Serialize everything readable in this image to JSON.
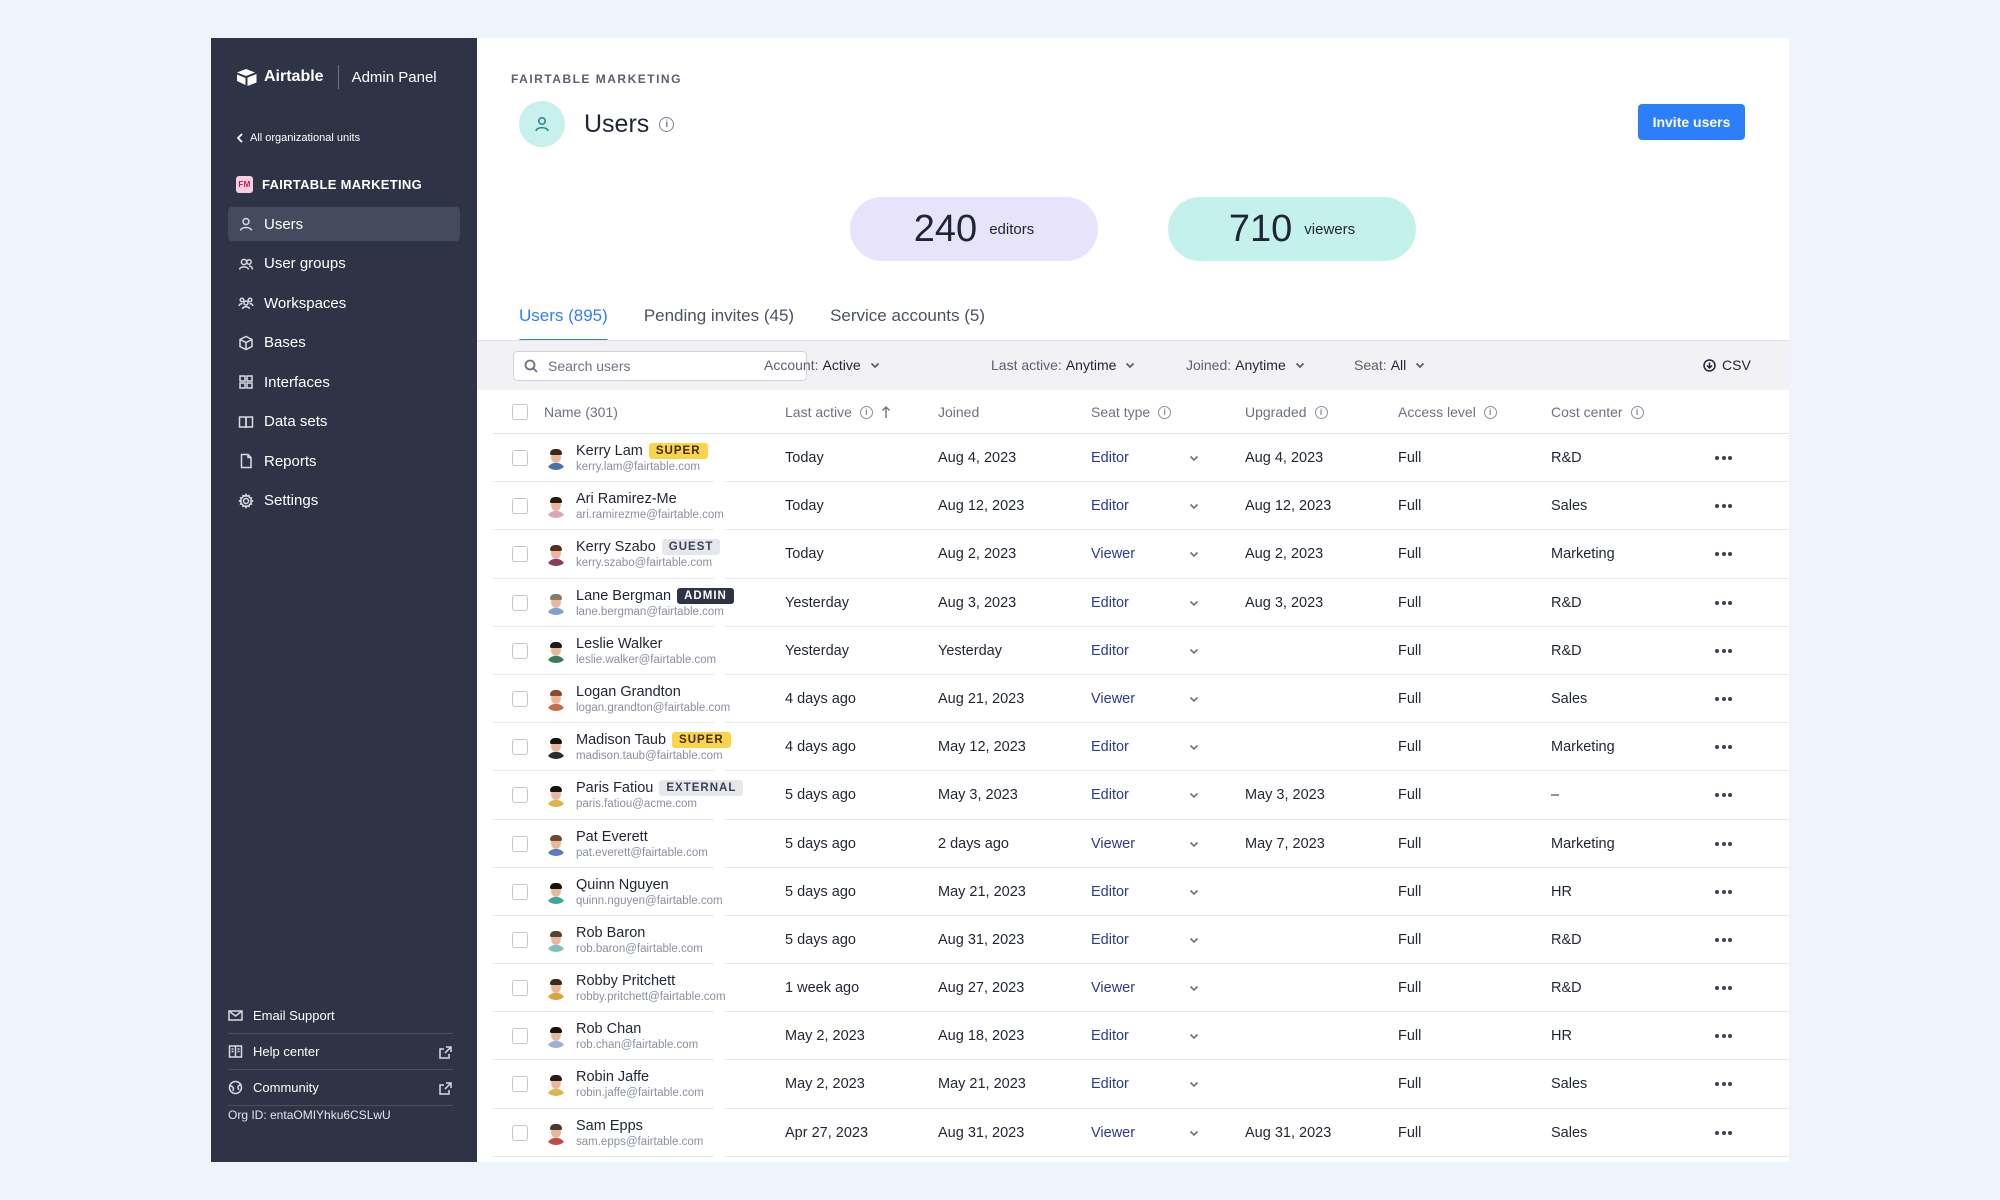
{
  "brand": {
    "name": "Airtable",
    "subtitle": "Admin Panel"
  },
  "sidebar": {
    "back_label": "All organizational units",
    "org_badge": "FM",
    "org_name": "FAIRTABLE MARKETING",
    "items": [
      {
        "label": "Users",
        "icon": "user-icon",
        "active": true
      },
      {
        "label": "User groups",
        "icon": "user-group-icon",
        "active": false
      },
      {
        "label": "Workspaces",
        "icon": "workspaces-icon",
        "active": false
      },
      {
        "label": "Bases",
        "icon": "cube-icon",
        "active": false
      },
      {
        "label": "Interfaces",
        "icon": "grid-icon",
        "active": false
      },
      {
        "label": "Data sets",
        "icon": "book-icon",
        "active": false
      },
      {
        "label": "Reports",
        "icon": "document-icon",
        "active": false
      },
      {
        "label": "Settings",
        "icon": "gear-icon",
        "active": false
      }
    ],
    "footer": {
      "email_support": "Email Support",
      "help_center": "Help center",
      "community": "Community",
      "org_id": "Org ID: entaOMIYhku6CSLwU"
    }
  },
  "header": {
    "eyebrow": "FAIRTABLE MARKETING",
    "title": "Users",
    "invite_label": "Invite users"
  },
  "stats": {
    "editors": {
      "value": "240",
      "label": "editors",
      "color": "#e7e3fb"
    },
    "viewers": {
      "value": "710",
      "label": "viewers",
      "color": "#c5f1ec"
    }
  },
  "tabs": [
    {
      "label": "Users (895)",
      "active": true
    },
    {
      "label": "Pending invites (45)",
      "active": false
    },
    {
      "label": "Service accounts (5)",
      "active": false
    }
  ],
  "filters": {
    "search_placeholder": "Search users",
    "account": {
      "label": "Account:",
      "value": "Active"
    },
    "last_active": {
      "label": "Last active:",
      "value": "Anytime"
    },
    "joined": {
      "label": "Joined:",
      "value": "Anytime"
    },
    "seat": {
      "label": "Seat:",
      "value": "All"
    },
    "csv_label": "CSV"
  },
  "table": {
    "columns": {
      "name": "Name (301)",
      "last_active": "Last active",
      "joined": "Joined",
      "seat_type": "Seat type",
      "upgraded": "Upgraded",
      "access_level": "Access level",
      "cost_center": "Cost center"
    },
    "rows": [
      {
        "name": "Kerry Lam",
        "badge": "SUPER",
        "badge_type": "super",
        "email": "kerry.lam@fairtable.com",
        "last_active": "Today",
        "joined": "Aug 4, 2023",
        "seat": "Editor",
        "upgraded": "Aug 4, 2023",
        "access": "Full",
        "cost": "R&D",
        "hair": "#3a2a1e",
        "shirt": "#4a6fb5"
      },
      {
        "name": "Ari Ramirez-Me",
        "badge": "",
        "badge_type": "",
        "email": "ari.ramirezme@fairtable.com",
        "last_active": "Today",
        "joined": "Aug 12, 2023",
        "seat": "Editor",
        "upgraded": "Aug 12, 2023",
        "access": "Full",
        "cost": "Sales",
        "hair": "#2a1a12",
        "shirt": "#d9a7b6"
      },
      {
        "name": "Kerry Szabo",
        "badge": "GUEST",
        "badge_type": "guest",
        "email": "kerry.szabo@fairtable.com",
        "last_active": "Today",
        "joined": "Aug 2, 2023",
        "seat": "Viewer",
        "upgraded": "Aug 2, 2023",
        "access": "Full",
        "cost": "Marketing",
        "hair": "#5a2e1e",
        "shirt": "#8b3a62"
      },
      {
        "name": "Lane Bergman",
        "badge": "ADMIN",
        "badge_type": "admin",
        "email": "lane.bergman@fairtable.com",
        "last_active": "Yesterday",
        "joined": "Aug 3, 2023",
        "seat": "Editor",
        "upgraded": "Aug 3, 2023",
        "access": "Full",
        "cost": "R&D",
        "hair": "#8a7a68",
        "shirt": "#7fa0d0"
      },
      {
        "name": "Leslie Walker",
        "badge": "",
        "badge_type": "",
        "email": "leslie.walker@fairtable.com",
        "last_active": "Yesterday",
        "joined": "Yesterday",
        "seat": "Editor",
        "upgraded": "",
        "access": "Full",
        "cost": "R&D",
        "hair": "#1e1a16",
        "shirt": "#3a7a5a"
      },
      {
        "name": "Logan Grandton",
        "badge": "",
        "badge_type": "",
        "email": "logan.grandton@fairtable.com",
        "last_active": "4 days ago",
        "joined": "Aug 21, 2023",
        "seat": "Viewer",
        "upgraded": "",
        "access": "Full",
        "cost": "Sales",
        "hair": "#8a4a2a",
        "shirt": "#c46a4a"
      },
      {
        "name": "Madison Taub",
        "badge": "SUPER",
        "badge_type": "super",
        "email": "madison.taub@fairtable.com",
        "last_active": "4 days ago",
        "joined": "May 12, 2023",
        "seat": "Editor",
        "upgraded": "",
        "access": "Full",
        "cost": "Marketing",
        "hair": "#1a120c",
        "shirt": "#2a2a2a"
      },
      {
        "name": "Paris Fatiou",
        "badge": "EXTERNAL",
        "badge_type": "external",
        "email": "paris.fatiou@acme.com",
        "last_active": "5 days ago",
        "joined": "May 3, 2023",
        "seat": "Editor",
        "upgraded": "May 3, 2023",
        "access": "Full",
        "cost": "–",
        "hair": "#1a120c",
        "shirt": "#e0b44a"
      },
      {
        "name": "Pat Everett",
        "badge": "",
        "badge_type": "",
        "email": "pat.everett@fairtable.com",
        "last_active": "5 days ago",
        "joined": "2 days ago",
        "seat": "Viewer",
        "upgraded": "May 7, 2023",
        "access": "Full",
        "cost": "Marketing",
        "hair": "#6a4a32",
        "shirt": "#5a7ac4"
      },
      {
        "name": "Quinn Nguyen",
        "badge": "",
        "badge_type": "",
        "email": "quinn.nguyen@fairtable.com",
        "last_active": "5 days ago",
        "joined": "May 21, 2023",
        "seat": "Editor",
        "upgraded": "",
        "access": "Full",
        "cost": "HR",
        "hair": "#1a120c",
        "shirt": "#3aa89a"
      },
      {
        "name": "Rob Baron",
        "badge": "",
        "badge_type": "",
        "email": "rob.baron@fairtable.com",
        "last_active": "5 days ago",
        "joined": "Aug 31, 2023",
        "seat": "Editor",
        "upgraded": "",
        "access": "Full",
        "cost": "R&D",
        "hair": "#5a4030",
        "shirt": "#7fc0c0"
      },
      {
        "name": "Robby Pritchett",
        "badge": "",
        "badge_type": "",
        "email": "robby.pritchett@fairtable.com",
        "last_active": "1 week ago",
        "joined": "Aug 27, 2023",
        "seat": "Viewer",
        "upgraded": "",
        "access": "Full",
        "cost": "R&D",
        "hair": "#3a2a1e",
        "shirt": "#e0a03a"
      },
      {
        "name": "Rob Chan",
        "badge": "",
        "badge_type": "",
        "email": "rob.chan@fairtable.com",
        "last_active": "May 2, 2023",
        "joined": "Aug 18, 2023",
        "seat": "Editor",
        "upgraded": "",
        "access": "Full",
        "cost": "HR",
        "hair": "#1a120c",
        "shirt": "#9ab0d8"
      },
      {
        "name": "Robin Jaffe",
        "badge": "",
        "badge_type": "",
        "email": "robin.jaffe@fairtable.com",
        "last_active": "May 2, 2023",
        "joined": "May 21, 2023",
        "seat": "Editor",
        "upgraded": "",
        "access": "Full",
        "cost": "Sales",
        "hair": "#2a1a12",
        "shirt": "#e0b44a"
      },
      {
        "name": "Sam Epps",
        "badge": "",
        "badge_type": "",
        "email": "sam.epps@fairtable.com",
        "last_active": "Apr 27, 2023",
        "joined": "Aug 31, 2023",
        "seat": "Viewer",
        "upgraded": "Aug 31, 2023",
        "access": "Full",
        "cost": "Sales",
        "hair": "#4a3a2a",
        "shirt": "#c44a4a"
      }
    ]
  }
}
